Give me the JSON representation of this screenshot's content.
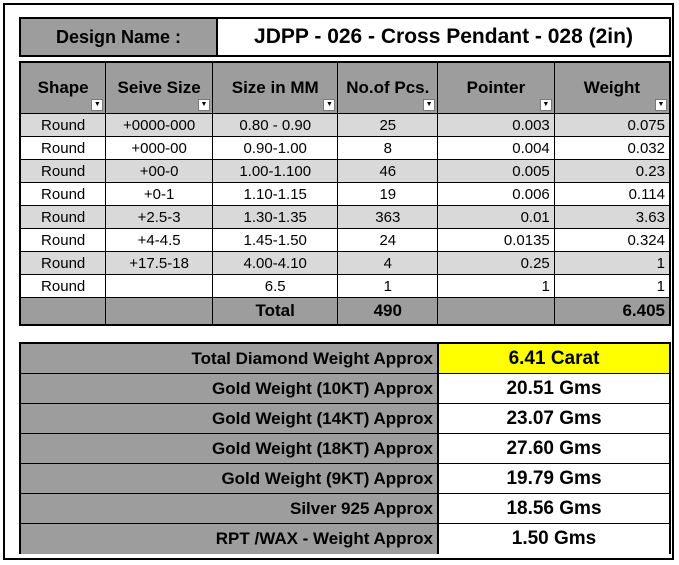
{
  "header": {
    "label": "Design Name :",
    "value": "JDPP - 026 - Cross Pendant - 028 (2in)"
  },
  "table": {
    "columns": [
      "Shape",
      "Seive Size",
      "Size in MM",
      "No.of Pcs.",
      "Pointer",
      "Weight"
    ],
    "rows": [
      [
        "Round",
        "+0000-000",
        "0.80 - 0.90",
        "25",
        "0.003",
        "0.075"
      ],
      [
        "Round",
        "+000-00",
        "0.90-1.00",
        "8",
        "0.004",
        "0.032"
      ],
      [
        "Round",
        "+00-0",
        "1.00-1.100",
        "46",
        "0.005",
        "0.23"
      ],
      [
        "Round",
        "+0-1",
        "1.10-1.15",
        "19",
        "0.006",
        "0.114"
      ],
      [
        "Round",
        "+2.5-3",
        "1.30-1.35",
        "363",
        "0.01",
        "3.63"
      ],
      [
        "Round",
        "+4-4.5",
        "1.45-1.50",
        "24",
        "0.0135",
        "0.324"
      ],
      [
        "Round",
        "+17.5-18",
        "4.00-4.10",
        "4",
        "0.25",
        "1"
      ],
      [
        "Round",
        "",
        "6.5",
        "1",
        "1",
        "1"
      ]
    ],
    "total": {
      "label": "Total",
      "pcs": "490",
      "weight": "6.405"
    }
  },
  "summary": [
    {
      "label": "Total Diamond Weight Approx",
      "value": "6.41 Carat"
    },
    {
      "label": "Gold Weight (10KT) Approx",
      "value": "20.51 Gms"
    },
    {
      "label": "Gold Weight (14KT) Approx",
      "value": "23.07 Gms"
    },
    {
      "label": "Gold Weight (18KT) Approx",
      "value": "27.60 Gms"
    },
    {
      "label": "Gold Weight (9KT) Approx",
      "value": "19.79 Gms"
    },
    {
      "label": "Silver 925 Approx",
      "value": "18.56 Gms"
    },
    {
      "label": "RPT /WAX - Weight Approx",
      "value": "1.50 Gms"
    }
  ],
  "colors": {
    "header_gray": "#9d9d9d",
    "row_shade": "#d9d9d9",
    "highlight": "#ffff00"
  },
  "icons": {
    "filter": "filter-dropdown-icon",
    "filter_active": "filter-active-icon"
  }
}
